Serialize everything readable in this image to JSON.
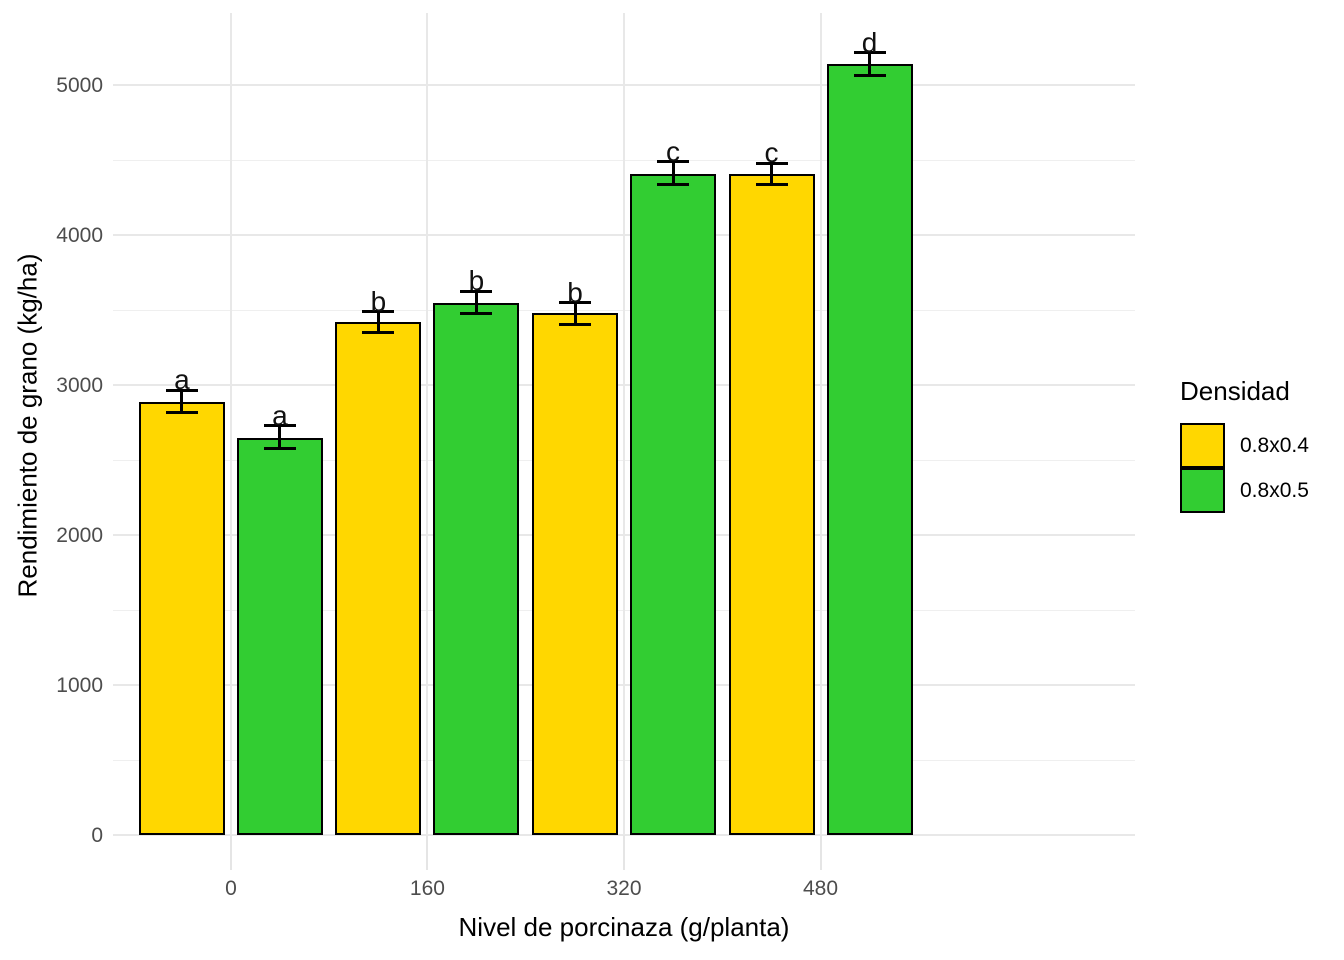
{
  "chart_data": {
    "type": "bar",
    "title": "",
    "xlabel": "Nivel de porcinaza (g/planta)",
    "ylabel": "Rendimiento de grano (kg/ha)",
    "legend_title": "Densidad",
    "legend_position": "right",
    "grid": true,
    "categories": [
      "0",
      "160",
      "320",
      "480"
    ],
    "series": [
      {
        "name": "0.8x0.4",
        "color": "#FFD700",
        "values": [
          2890,
          3420,
          3480,
          4410
        ],
        "error_upper": [
          2965,
          3490,
          3550,
          4480
        ],
        "error_lower": [
          2815,
          3350,
          3405,
          4335
        ],
        "letters": [
          "a",
          "b",
          "b",
          "c"
        ]
      },
      {
        "name": "0.8x0.5",
        "color": "#32CD32",
        "values": [
          2650,
          3550,
          4410,
          5140
        ],
        "error_upper": [
          2730,
          3625,
          4490,
          5215
        ],
        "error_lower": [
          2575,
          3475,
          4340,
          5065
        ],
        "letters": [
          "a",
          "b",
          "c",
          "d"
        ]
      }
    ],
    "y_ticks": [
      0,
      1000,
      2000,
      3000,
      4000,
      5000
    ],
    "y_minor_ticks": [
      500,
      1500,
      2500,
      3500,
      4500
    ],
    "ylim": [
      0,
      5480
    ]
  },
  "legend": {
    "title": "Densidad",
    "items": [
      {
        "label": "0.8x0.4",
        "color": "#FFD700"
      },
      {
        "label": "0.8x0.5",
        "color": "#32CD32"
      }
    ]
  },
  "colors": {
    "background": "#ffffff",
    "grid_major": "#e8e8e8",
    "grid_minor": "#efefef",
    "axis_text": "#4d4d4d",
    "title_text": "#000000",
    "bar_outline": "#000000"
  }
}
